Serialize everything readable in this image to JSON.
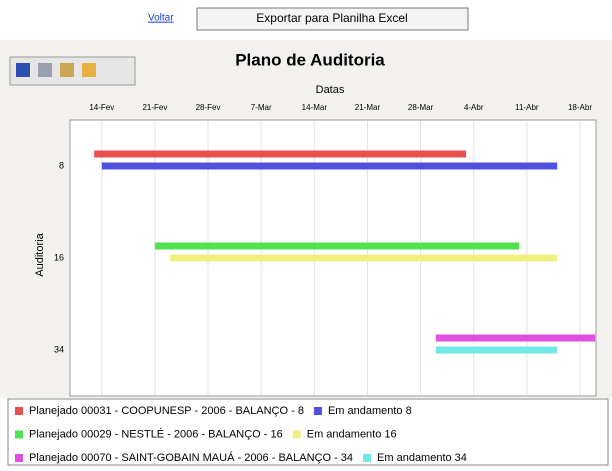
{
  "ui": {
    "back_link": "Voltar",
    "export_button": "Exportar para Planilha Excel"
  },
  "chart_data": {
    "type": "gantt",
    "title": "Plano de Auditoria",
    "x_label": "Datas",
    "y_label": "Auditoria",
    "categories": [
      "8",
      "16",
      "34"
    ],
    "xlim": [
      42,
      108
    ],
    "xticks": [
      {
        "value": 45,
        "label": "14-Fev"
      },
      {
        "value": 52,
        "label": "21-Fev"
      },
      {
        "value": 59,
        "label": "28-Fev"
      },
      {
        "value": 66,
        "label": "7-Mar"
      },
      {
        "value": 73,
        "label": "14-Mar"
      },
      {
        "value": 80,
        "label": "21-Mar"
      },
      {
        "value": 87,
        "label": "28-Mar"
      },
      {
        "value": 94,
        "label": "4-Abr"
      },
      {
        "value": 101,
        "label": "11-Abr"
      },
      {
        "value": 108,
        "label": "18-Abr"
      }
    ],
    "grid": true,
    "series": [
      {
        "name": "Planejado 00031 - COOPUNESP - 2006 - BALANÇO - 8",
        "color": "#e8504f",
        "start": [
          44,
          null,
          null
        ],
        "end": [
          93,
          null,
          null
        ]
      },
      {
        "name": "Em andamento 8",
        "color": "#5050e0",
        "start": [
          45,
          null,
          null
        ],
        "end": [
          105,
          null,
          null
        ]
      },
      {
        "name": "Planejado 00029 - NESTLÉ - 2006 - BALANÇO - 16",
        "color": "#50e050",
        "start": [
          null,
          52,
          null
        ],
        "end": [
          null,
          100,
          null
        ]
      },
      {
        "name": "Em andamento 16",
        "color": "#f0f080",
        "start": [
          null,
          54,
          null
        ],
        "end": [
          null,
          105,
          null
        ]
      },
      {
        "name": "Planejado 00070 - SAINT-GOBAIN MAUÁ - 2006 - BALANÇO - 34",
        "color": "#e050e0",
        "start": [
          null,
          null,
          89
        ],
        "end": [
          null,
          null,
          110
        ]
      },
      {
        "name": "Em andamento 34",
        "color": "#70e8e8",
        "start": [
          null,
          null,
          89
        ],
        "end": [
          null,
          null,
          105
        ]
      }
    ]
  }
}
